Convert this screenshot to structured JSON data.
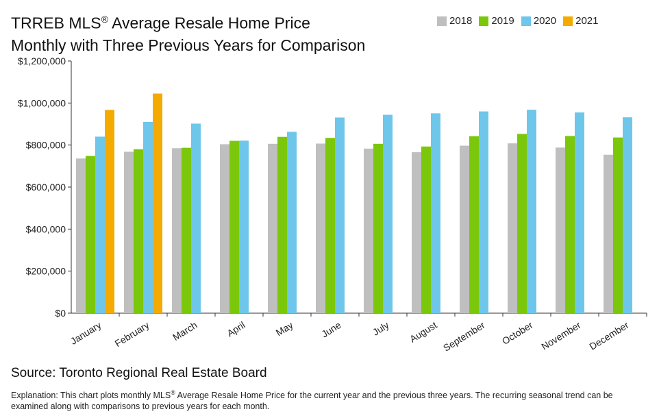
{
  "title_line1_pre": "TRREB MLS",
  "title_line1_sup": "®",
  "title_line1_post": " Average Resale Home Price",
  "title_line2": "Monthly with Three Previous Years for Comparison",
  "source": "Source: Toronto Regional Real Estate Board",
  "explanation_pre": "Explanation: This chart plots monthly MLS",
  "explanation_sup": "®",
  "explanation_post": " Average Resale Home Price for the current year and the previous three years. The recurring seasonal trend can be examined along with comparisons to previous years for each month.",
  "chart_data": {
    "type": "bar",
    "categories": [
      "January",
      "February",
      "March",
      "April",
      "May",
      "June",
      "July",
      "August",
      "September",
      "October",
      "November",
      "December"
    ],
    "series": [
      {
        "name": "2018",
        "color": "#bfbfbf",
        "values": [
          736000,
          768000,
          785000,
          804000,
          806000,
          807000,
          783000,
          766000,
          797000,
          808000,
          788000,
          754000
        ]
      },
      {
        "name": "2019",
        "color": "#7ac70c",
        "values": [
          748000,
          780000,
          787000,
          820000,
          839000,
          834000,
          806000,
          793000,
          842000,
          853000,
          843000,
          836000
        ]
      },
      {
        "name": "2020",
        "color": "#6ec6ea",
        "values": [
          840000,
          910000,
          902000,
          821000,
          863000,
          931000,
          944000,
          951000,
          960000,
          968000,
          955000,
          932000
        ]
      },
      {
        "name": "2021",
        "color": "#f4aa00",
        "values": [
          967000,
          1045000,
          null,
          null,
          null,
          null,
          null,
          null,
          null,
          null,
          null,
          null
        ]
      }
    ],
    "ylim": [
      0,
      1200000
    ],
    "yticks": [
      0,
      200000,
      400000,
      600000,
      800000,
      1000000,
      1200000
    ],
    "ytick_labels": [
      "$0",
      "$200,000",
      "$400,000",
      "$600,000",
      "$800,000",
      "$1,000,000",
      "$1,200,000"
    ],
    "legend_position": "top-right",
    "grid": false
  }
}
